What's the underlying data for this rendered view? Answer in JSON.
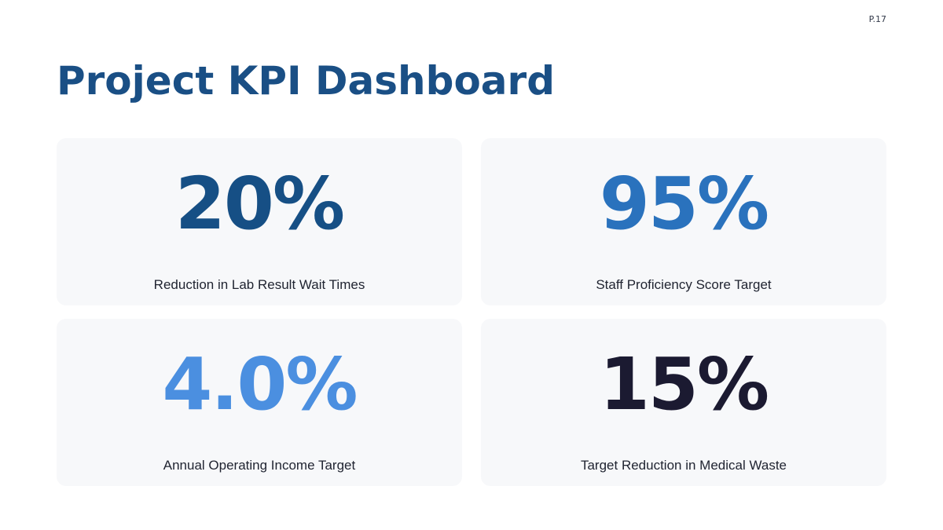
{
  "page": {
    "number": "P.17",
    "title": "Project KPI Dashboard"
  },
  "kpis": [
    {
      "value": "20%",
      "label": "Reduction in Lab Result Wait Times",
      "color": "#164f85"
    },
    {
      "value": "95%",
      "label": "Staff Proficiency Score Target",
      "color": "#2a72bd"
    },
    {
      "value": "4.0%",
      "label": "Annual Operating Income Target",
      "color": "#4b8fe0"
    },
    {
      "value": "15%",
      "label": "Target Reduction in Medical Waste",
      "color": "#1b1a31"
    }
  ],
  "colors": {
    "title": "#1a4f85",
    "card_background": "#f7f8fa",
    "label_text": "#1f2330"
  }
}
